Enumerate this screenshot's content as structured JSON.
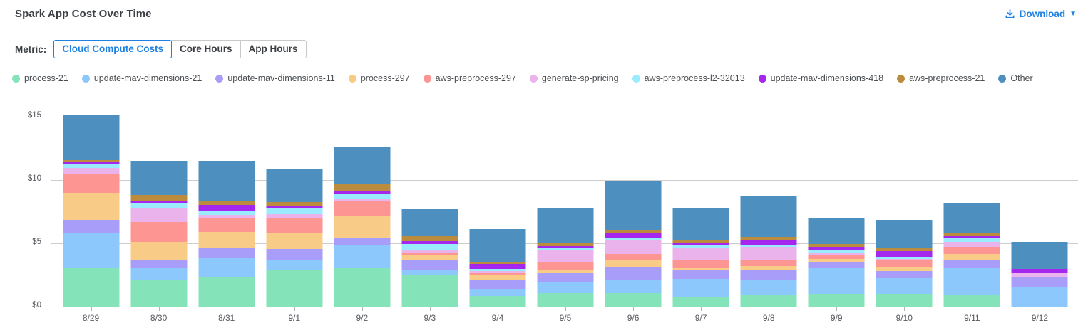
{
  "header": {
    "title": "Spark App Cost Over Time",
    "download_label": "Download"
  },
  "controls": {
    "metric_label": "Metric:",
    "options": [
      {
        "label": "Cloud Compute Costs",
        "selected": true
      },
      {
        "label": "Core Hours",
        "selected": false
      },
      {
        "label": "App Hours",
        "selected": false
      }
    ]
  },
  "colors": {
    "accent_blue": "#1f82e0"
  },
  "chart_data": {
    "type": "bar",
    "stacked": true,
    "title": "Spark App Cost Over Time",
    "xlabel": "",
    "ylabel": "Cloud Compute Costs ($)",
    "ylim": [
      0,
      15
    ],
    "yticks": [
      {
        "label": "$0",
        "value": 0
      },
      {
        "label": "$5",
        "value": 5
      },
      {
        "label": "$10",
        "value": 10
      },
      {
        "label": "$15",
        "value": 15
      }
    ],
    "grid": true,
    "legend_position": "top",
    "categories": [
      "8/29",
      "8/30",
      "8/31",
      "9/1",
      "9/2",
      "9/3",
      "9/4",
      "9/5",
      "9/6",
      "9/7",
      "9/8",
      "9/9",
      "9/10",
      "9/11",
      "9/12"
    ],
    "series": [
      {
        "name": "process-21",
        "color": "#85e3ba",
        "values": [
          3.07,
          2.16,
          2.32,
          2.88,
          3.11,
          2.47,
          0.85,
          1.09,
          1.09,
          0.81,
          0.9,
          1.03,
          1.03,
          0.9,
          0.0
        ]
      },
      {
        "name": "update-mav-dimensions-21",
        "color": "#8cc8fb",
        "values": [
          2.77,
          0.87,
          1.56,
          0.75,
          1.77,
          0.41,
          0.56,
          0.85,
          1.07,
          1.36,
          1.19,
          2.03,
          1.24,
          2.13,
          1.6
        ]
      },
      {
        "name": "update-mav-dimensions-11",
        "color": "#a89df8",
        "values": [
          1.04,
          0.6,
          0.73,
          0.94,
          0.57,
          0.79,
          0.72,
          0.75,
          1.0,
          0.72,
          0.83,
          0.47,
          0.56,
          0.6,
          0.75
        ]
      },
      {
        "name": "process-297",
        "color": "#f8cc87",
        "values": [
          2.11,
          1.47,
          1.28,
          1.28,
          1.7,
          0.38,
          0.34,
          0.19,
          0.47,
          0.19,
          0.3,
          0.24,
          0.32,
          0.53,
          0.0
        ]
      },
      {
        "name": "aws-preprocess-297",
        "color": "#fd9593",
        "values": [
          1.54,
          1.58,
          1.13,
          1.13,
          1.23,
          0.25,
          0.23,
          0.66,
          0.53,
          0.6,
          0.41,
          0.32,
          0.51,
          0.57,
          0.0
        ]
      },
      {
        "name": "generate-sp-pricing",
        "color": "#eab3ec",
        "values": [
          0.42,
          1.1,
          0.23,
          0.32,
          0.15,
          0.19,
          0.13,
          0.88,
          1.13,
          1.0,
          1.1,
          0.13,
          0.11,
          0.41,
          0.34
        ]
      },
      {
        "name": "aws-preprocess-l2-32013",
        "color": "#9aebfd",
        "values": [
          0.34,
          0.41,
          0.34,
          0.44,
          0.41,
          0.47,
          0.15,
          0.19,
          0.13,
          0.13,
          0.13,
          0.24,
          0.19,
          0.23,
          0.0
        ]
      },
      {
        "name": "update-mav-dimensions-418",
        "color": "#a527ee",
        "values": [
          0.11,
          0.19,
          0.42,
          0.19,
          0.19,
          0.19,
          0.41,
          0.15,
          0.44,
          0.19,
          0.44,
          0.25,
          0.45,
          0.19,
          0.28
        ]
      },
      {
        "name": "aws-preprocess-21",
        "color": "#bb8b3e",
        "values": [
          0.2,
          0.47,
          0.34,
          0.36,
          0.53,
          0.47,
          0.15,
          0.23,
          0.23,
          0.25,
          0.23,
          0.26,
          0.19,
          0.25,
          0.0
        ]
      },
      {
        "name": "Other",
        "color": "#4d8fbe",
        "values": [
          3.5,
          2.65,
          3.16,
          2.6,
          3.01,
          2.07,
          2.6,
          2.75,
          3.86,
          2.5,
          3.24,
          2.07,
          2.26,
          2.39,
          2.12
        ]
      }
    ]
  }
}
